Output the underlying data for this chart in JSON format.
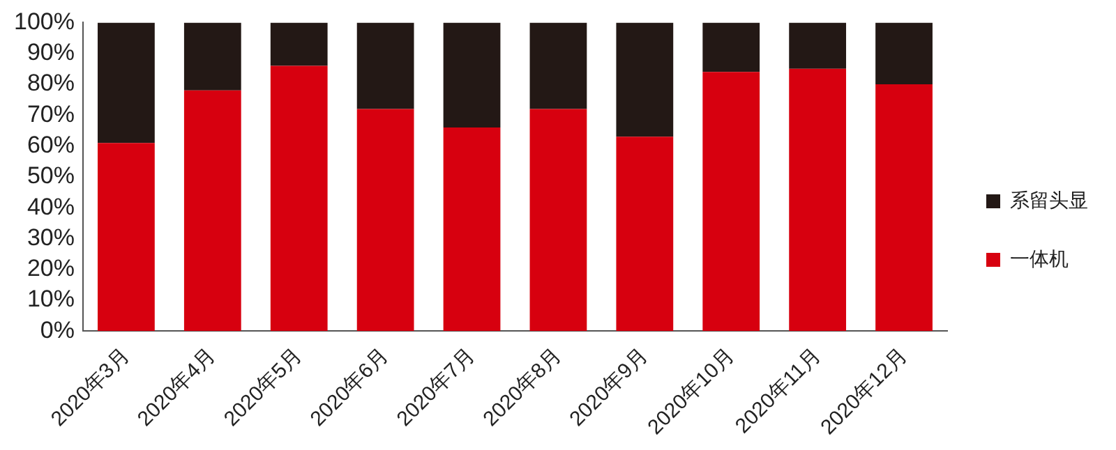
{
  "chart_data": {
    "type": "bar",
    "stacked": true,
    "categories": [
      "2020年3月",
      "2020年4月",
      "2020年5月",
      "2020年6月",
      "2020年7月",
      "2020年8月",
      "2020年9月",
      "2020年10月",
      "2020年11月",
      "2020年12月"
    ],
    "series": [
      {
        "name": "一体机",
        "color": "#d7000f",
        "values": [
          61,
          78,
          86,
          72,
          66,
          72,
          63,
          84,
          85,
          80
        ]
      },
      {
        "name": "系留头显",
        "color": "#231815",
        "values": [
          39,
          22,
          14,
          28,
          34,
          28,
          37,
          16,
          15,
          20
        ]
      }
    ],
    "ylim": [
      0,
      100
    ],
    "yticks": [
      {
        "value": 0,
        "label": "0%"
      },
      {
        "value": 10,
        "label": "10%"
      },
      {
        "value": 20,
        "label": "20%"
      },
      {
        "value": 30,
        "label": "30%"
      },
      {
        "value": 40,
        "label": "40%"
      },
      {
        "value": 50,
        "label": "50%"
      },
      {
        "value": 60,
        "label": "60%"
      },
      {
        "value": 70,
        "label": "70%"
      },
      {
        "value": 80,
        "label": "80%"
      },
      {
        "value": 90,
        "label": "90%"
      },
      {
        "value": 100,
        "label": "100%"
      }
    ],
    "grid": false,
    "legend": "right"
  }
}
